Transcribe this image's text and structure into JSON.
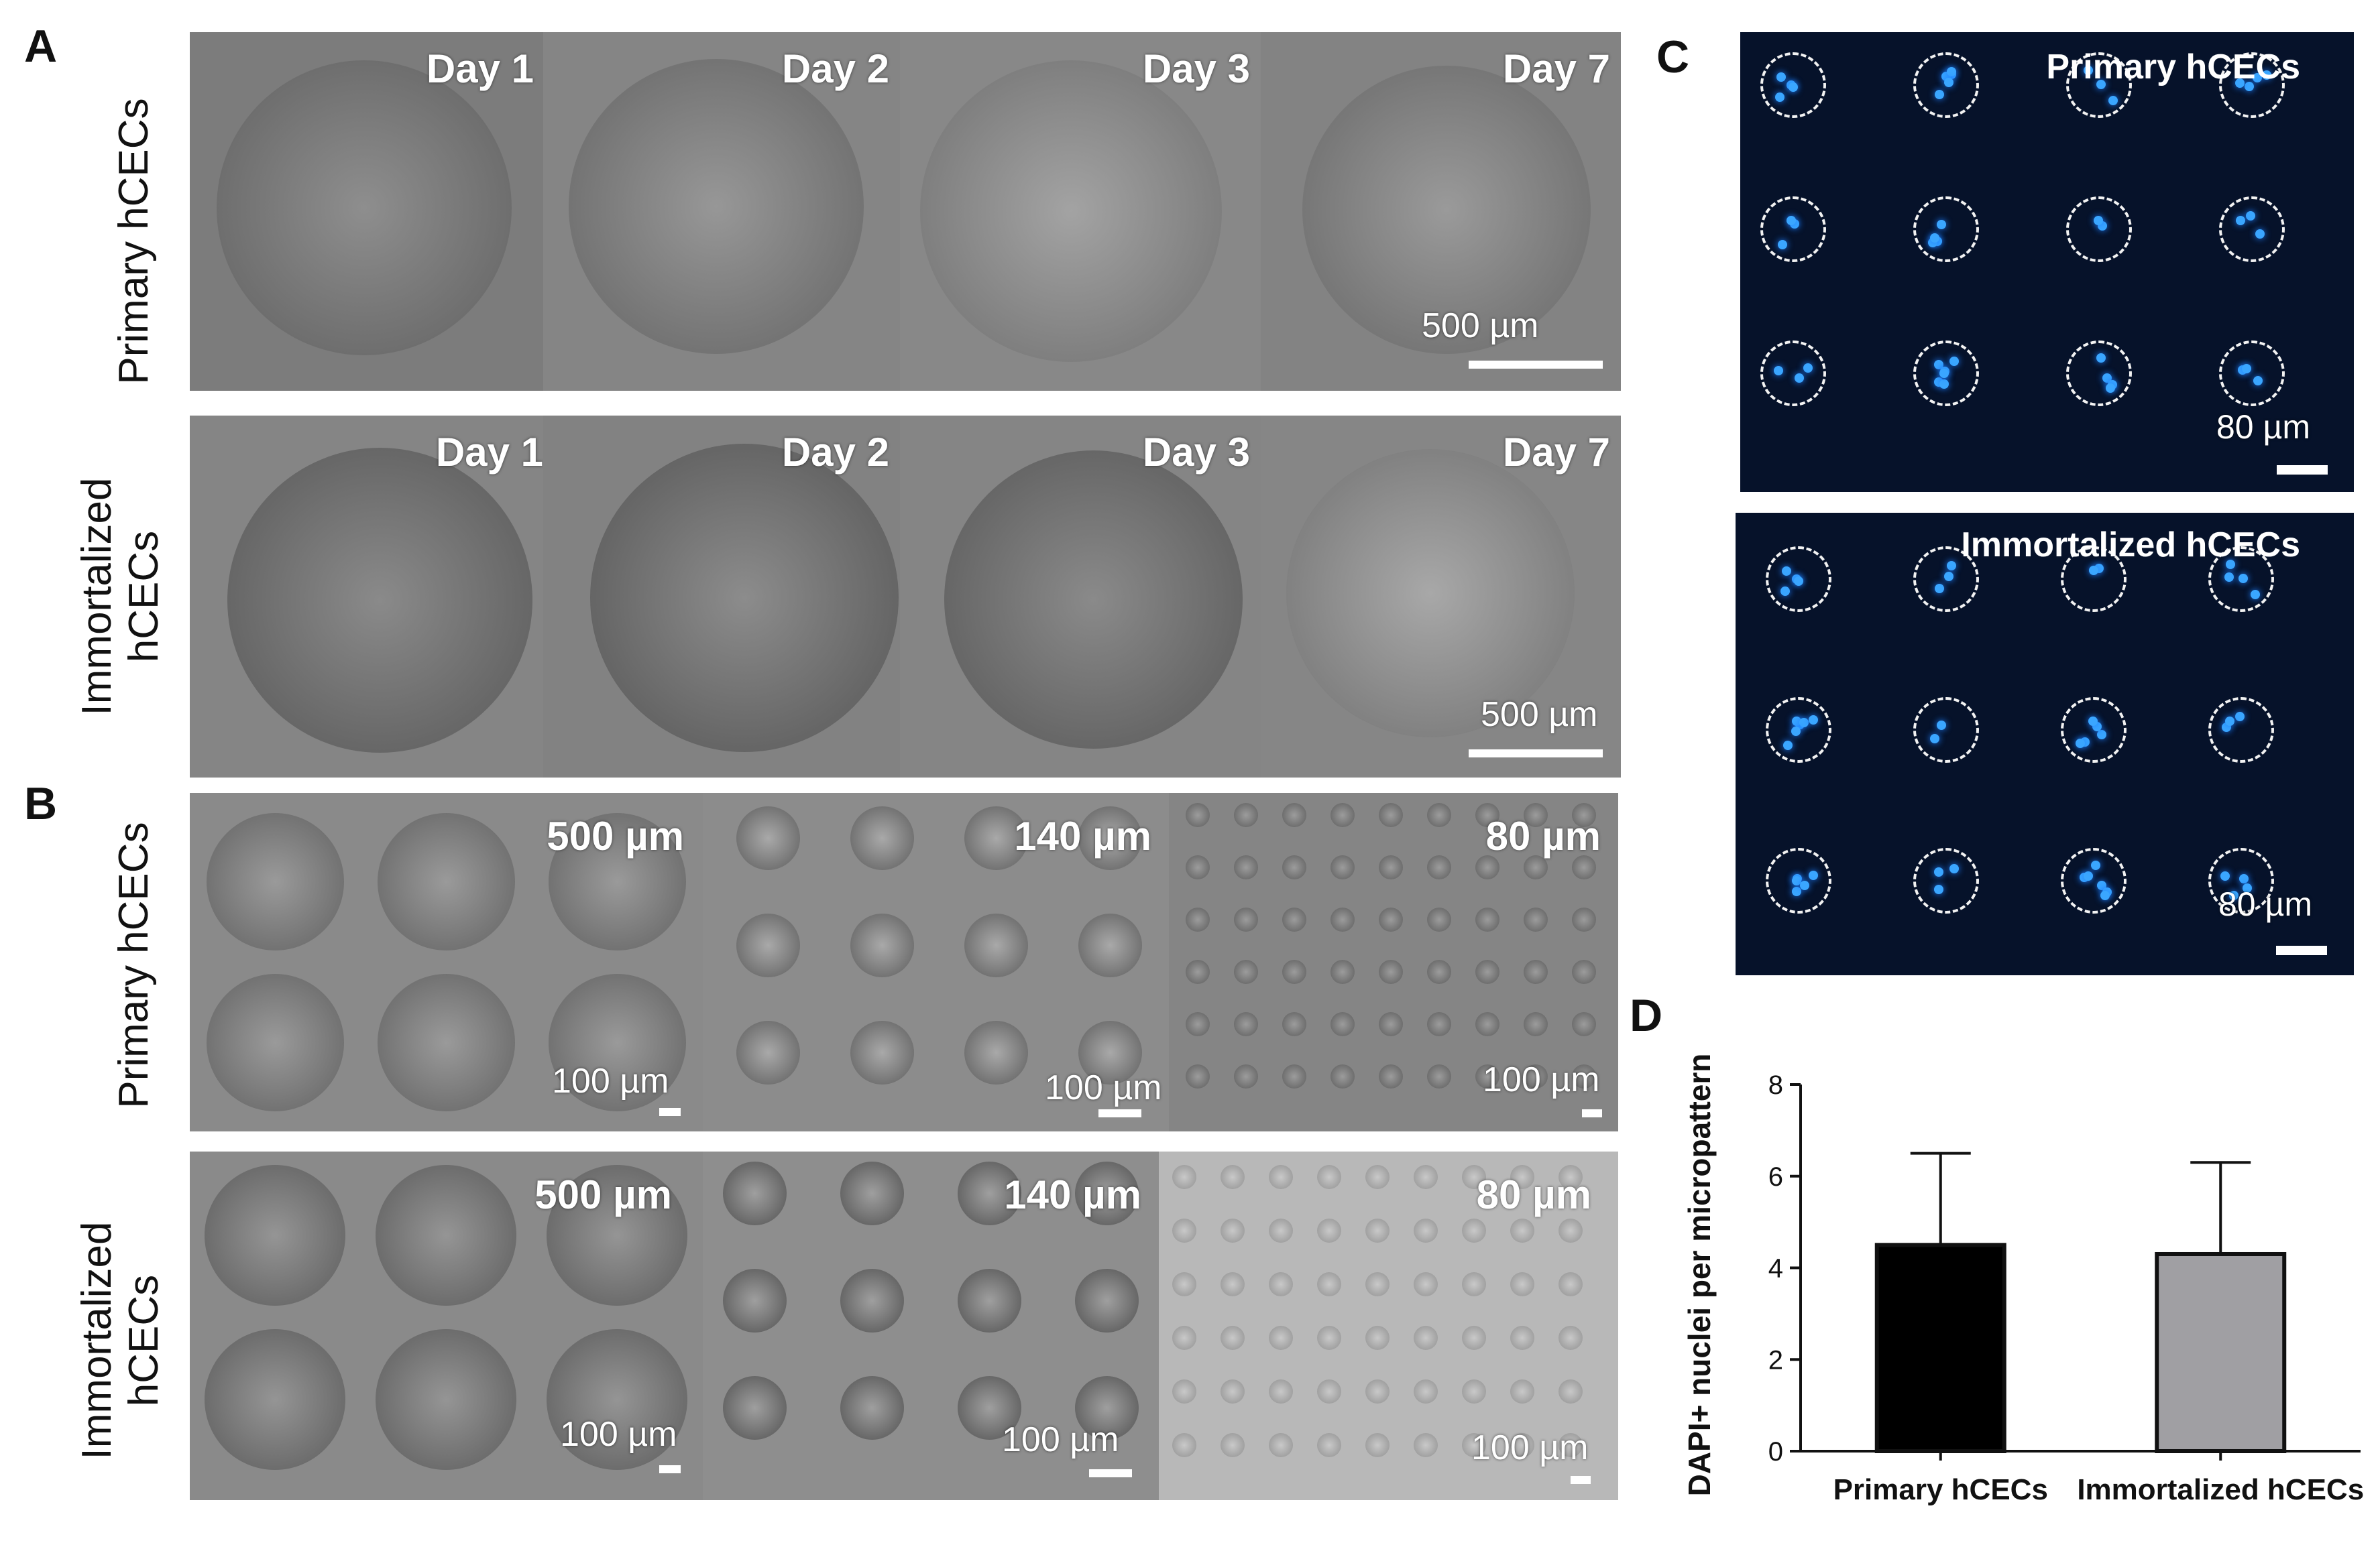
{
  "panels": {
    "A": "A",
    "B": "B",
    "C": "C",
    "D": "D"
  },
  "row_labels": {
    "primary": "Primary hCECs",
    "immortalized": "Immortalized\nhCECs"
  },
  "panel_a": {
    "day_labels": [
      "Day 1",
      "Day 2",
      "Day 3",
      "Day 7"
    ],
    "scale_label": "500 µm"
  },
  "panel_b": {
    "size_labels": [
      "500 µm",
      "140 µm",
      "80 µm"
    ],
    "scale_label": "100 µm"
  },
  "panel_c": {
    "primary_title": "Primary hCECs",
    "immortalized_title": "Immortalized hCECs",
    "scale_label": "80 µm"
  },
  "chart_data": {
    "type": "bar",
    "categories": [
      "Primary hCECs",
      "Immortalized hCECs"
    ],
    "values": [
      4.5,
      4.3
    ],
    "error_upper": [
      6.5,
      6.3
    ],
    "colors": [
      "#000000",
      "#a09fa3"
    ],
    "ylabel": "DAPI+ nuclei per micropattern",
    "ylim": [
      0,
      8
    ],
    "yticks": [
      0,
      2,
      4,
      6,
      8
    ],
    "grid": false
  }
}
